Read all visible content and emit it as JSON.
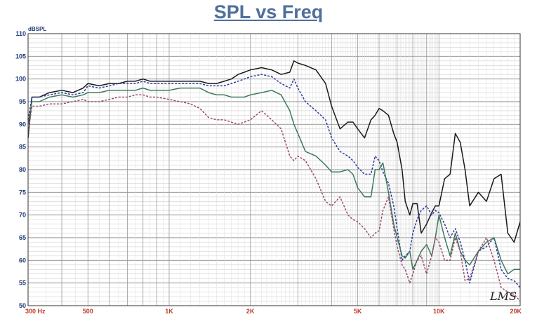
{
  "chart_data": {
    "type": "line",
    "title": "SPL vs Freq",
    "ylabel": "dBSPL",
    "xscale": "log",
    "xlim": [
      300,
      20000
    ],
    "ylim": [
      50,
      110
    ],
    "grid": true,
    "y_ticks": [
      "50",
      "55",
      "60",
      "65",
      "70",
      "75",
      "80",
      "85",
      "90",
      "95",
      "100",
      "105",
      "110"
    ],
    "x_ticks": [
      {
        "label": "300  Hz",
        "value": 300
      },
      {
        "label": "500",
        "value": 500
      },
      {
        "label": "1K",
        "value": 1000
      },
      {
        "label": "2K",
        "value": 2000
      },
      {
        "label": "5K",
        "value": 5000
      },
      {
        "label": "10K",
        "value": 10000
      },
      {
        "label": "20K",
        "value": 20000
      }
    ],
    "watermark": "LMS",
    "series": [
      {
        "color": "#1a1a1a",
        "dash": "",
        "x": [
          300,
          310,
          330,
          360,
          400,
          440,
          480,
          500,
          550,
          600,
          650,
          700,
          750,
          800,
          850,
          900,
          1000,
          1100,
          1200,
          1300,
          1400,
          1500,
          1600,
          1700,
          1800,
          1900,
          2000,
          2200,
          2400,
          2600,
          2800,
          2900,
          3000,
          3200,
          3500,
          3800,
          4000,
          4300,
          4600,
          4800,
          5000,
          5300,
          5600,
          5800,
          6000,
          6200,
          6500,
          6800,
          7000,
          7300,
          7500,
          7800,
          8000,
          8300,
          8600,
          9000,
          9400,
          9700,
          10000,
          10500,
          11000,
          11500,
          12000,
          12500,
          13000,
          14000,
          15000,
          16000,
          17000,
          18000,
          19000,
          20000
        ],
        "y": [
          87,
          96,
          96,
          97,
          97.5,
          97,
          98,
          99,
          98.5,
          99,
          99,
          99.5,
          99.5,
          100,
          99.5,
          99.5,
          99.5,
          99.5,
          99.5,
          99.5,
          99,
          99,
          99.5,
          100,
          101,
          101.5,
          102,
          102.5,
          102,
          101,
          101.5,
          104,
          103.5,
          103,
          102,
          99,
          94,
          89,
          90.5,
          90.5,
          89,
          87,
          91,
          92,
          93.5,
          93,
          92,
          88,
          86,
          80,
          73,
          70,
          72.5,
          72.5,
          66,
          68,
          70.5,
          72,
          72,
          78,
          79,
          88,
          86,
          80,
          72,
          75,
          73,
          78,
          79,
          66,
          64,
          68.5
        ]
      },
      {
        "color": "#2b3a9e",
        "dash": "3,2",
        "x": [
          300,
          310,
          330,
          360,
          400,
          440,
          480,
          500,
          550,
          600,
          650,
          700,
          750,
          800,
          850,
          900,
          1000,
          1100,
          1200,
          1300,
          1400,
          1500,
          1600,
          1700,
          1800,
          1900,
          2000,
          2200,
          2400,
          2600,
          2800,
          2900,
          3000,
          3200,
          3500,
          3800,
          4000,
          4300,
          4600,
          4800,
          5000,
          5300,
          5600,
          5800,
          6000,
          6200,
          6500,
          6800,
          7000,
          7300,
          7500,
          7800,
          8000,
          8300,
          8600,
          9000,
          9400,
          9700,
          10000,
          10500,
          11000,
          11500,
          12000,
          12500,
          13000,
          14000,
          15000,
          16000,
          17000,
          18000,
          19000,
          20000
        ],
        "y": [
          91,
          96,
          96,
          96.5,
          97,
          96.5,
          97,
          98.5,
          98,
          98.5,
          99,
          99,
          99,
          99.5,
          99,
          99,
          99,
          99,
          99,
          99,
          98.5,
          98.5,
          98.5,
          99,
          99.5,
          100,
          100.5,
          101,
          100.5,
          99,
          98,
          100,
          98,
          95,
          93,
          91,
          87,
          84,
          83,
          82,
          80.5,
          79,
          79,
          83,
          82,
          79.5,
          77,
          72,
          67,
          60,
          61,
          62,
          66,
          69,
          71,
          72,
          70,
          71,
          70.5,
          68,
          65,
          67,
          64,
          60,
          55,
          62,
          63,
          65,
          58,
          56,
          55.5,
          54
        ]
      },
      {
        "color": "#3d7a5a",
        "dash": "",
        "x": [
          300,
          310,
          330,
          360,
          400,
          440,
          480,
          500,
          550,
          600,
          650,
          700,
          750,
          800,
          850,
          900,
          1000,
          1100,
          1200,
          1300,
          1400,
          1500,
          1600,
          1700,
          1800,
          1900,
          2000,
          2200,
          2400,
          2600,
          2800,
          2900,
          3000,
          3200,
          3500,
          3800,
          4000,
          4300,
          4600,
          4800,
          5000,
          5300,
          5600,
          5800,
          6000,
          6200,
          6500,
          6800,
          7000,
          7300,
          7500,
          7800,
          8000,
          8300,
          8600,
          9000,
          9400,
          9700,
          10000,
          10500,
          11000,
          11500,
          12000,
          12500,
          13000,
          14000,
          15000,
          16000,
          17000,
          18000,
          19000,
          20000
        ],
        "y": [
          90,
          95,
          95,
          96,
          96.5,
          96,
          96.5,
          97,
          97,
          97.5,
          97.5,
          97.5,
          97.5,
          98,
          97.5,
          97.5,
          97.5,
          98,
          98,
          98,
          97,
          96.5,
          96.5,
          96,
          96,
          96,
          96.5,
          97,
          97.5,
          96.5,
          93,
          90,
          88,
          84,
          83,
          81,
          79.5,
          79.5,
          80,
          79,
          76,
          74,
          74,
          80,
          80,
          81.5,
          75,
          68,
          65,
          61,
          60.5,
          62,
          58,
          60,
          62,
          63.5,
          61,
          65,
          70,
          65,
          61,
          66,
          62,
          60,
          59,
          62,
          64,
          65,
          60,
          57,
          58,
          58
        ]
      },
      {
        "color": "#9a4a6a",
        "dash": "3,2",
        "x": [
          300,
          310,
          330,
          360,
          400,
          440,
          480,
          500,
          550,
          600,
          650,
          700,
          750,
          800,
          850,
          900,
          1000,
          1100,
          1200,
          1300,
          1400,
          1500,
          1600,
          1700,
          1800,
          1900,
          2000,
          2200,
          2400,
          2600,
          2800,
          2900,
          3000,
          3200,
          3500,
          3800,
          4000,
          4300,
          4600,
          4800,
          5000,
          5300,
          5600,
          5800,
          6000,
          6200,
          6500,
          6800,
          7000,
          7300,
          7500,
          7800,
          8000,
          8300,
          8600,
          9000,
          9400,
          9700,
          10000,
          10500,
          11000,
          11500,
          12000,
          12500,
          13000,
          14000,
          15000,
          16000,
          17000,
          18000,
          19000,
          20000
        ],
        "y": [
          88,
          94,
          94,
          94.5,
          94.5,
          95,
          95.5,
          95,
          95,
          95.5,
          96,
          96,
          96.5,
          96.5,
          96,
          96,
          95.5,
          95,
          94.5,
          93.5,
          91.5,
          91,
          91,
          90.5,
          90,
          90.5,
          91,
          93,
          91,
          89,
          83,
          82,
          83,
          82,
          78,
          73,
          72,
          74,
          70,
          69,
          68.5,
          67,
          65,
          66,
          66.5,
          71,
          74,
          67,
          63,
          59,
          58,
          55,
          57,
          60,
          61,
          57,
          61,
          65,
          64,
          60,
          60,
          65,
          62,
          55.5,
          56,
          62,
          65,
          60,
          54,
          53,
          52.5,
          51
        ]
      }
    ]
  }
}
